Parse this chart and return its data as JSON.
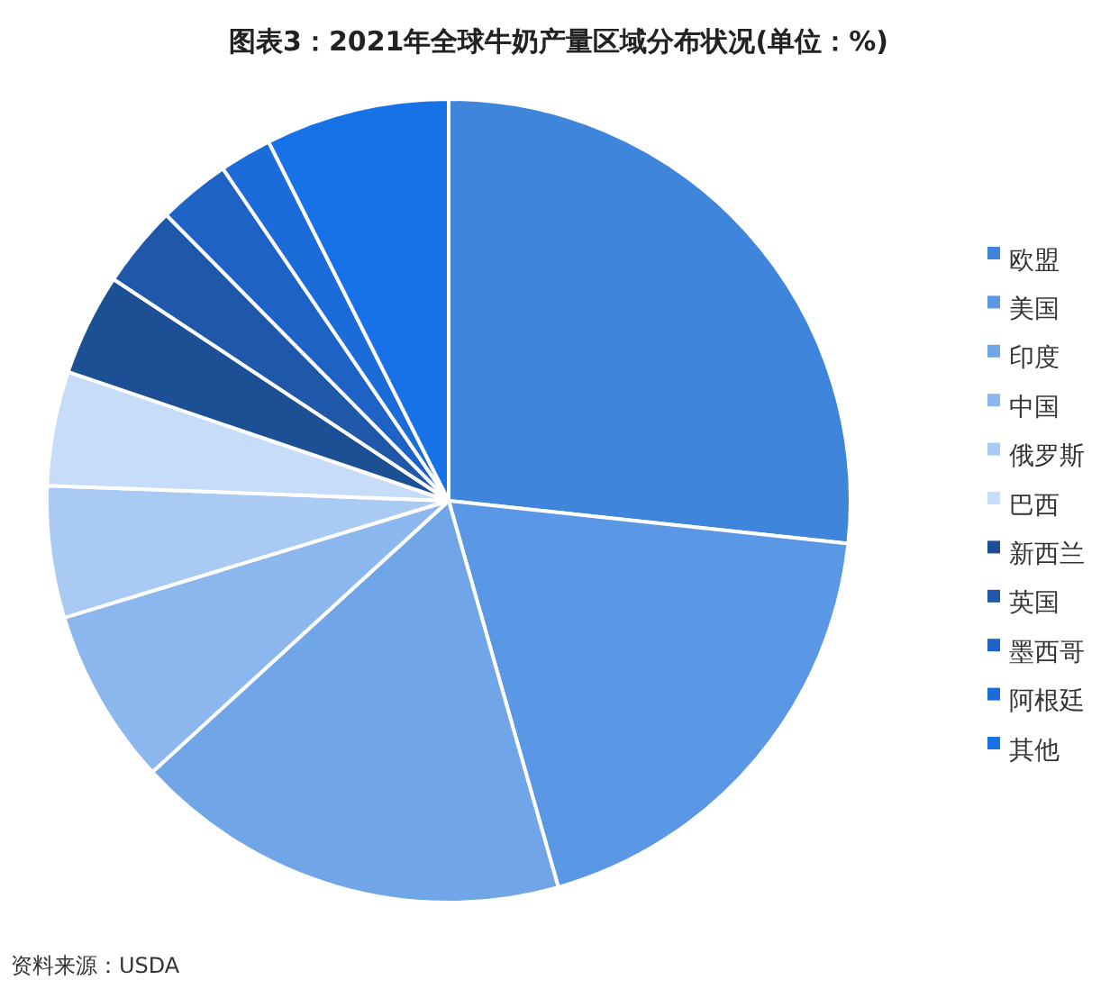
{
  "chart_data": {
    "type": "pie",
    "title": "图表3：2021年全球牛奶产量区域分布状况(单位：%)",
    "categories": [
      "欧盟",
      "美国",
      "印度",
      "中国",
      "俄罗斯",
      "巴西",
      "新西兰",
      "英国",
      "墨西哥",
      "阿根廷",
      "其他"
    ],
    "values": [
      26.7,
      18.9,
      17.6,
      7.1,
      5.3,
      4.6,
      4.1,
      3.3,
      2.9,
      2.1,
      7.4
    ],
    "colors": [
      "#3f85dc",
      "#5a97e4",
      "#70a5e8",
      "#8bb7ee",
      "#a9caf3",
      "#c6dcf8",
      "#1d4f94",
      "#1f58a8",
      "#1d62c4",
      "#1b6bd8",
      "#1672e6"
    ],
    "legend": "right",
    "annotations": [
      "资料来源：USDA"
    ]
  }
}
